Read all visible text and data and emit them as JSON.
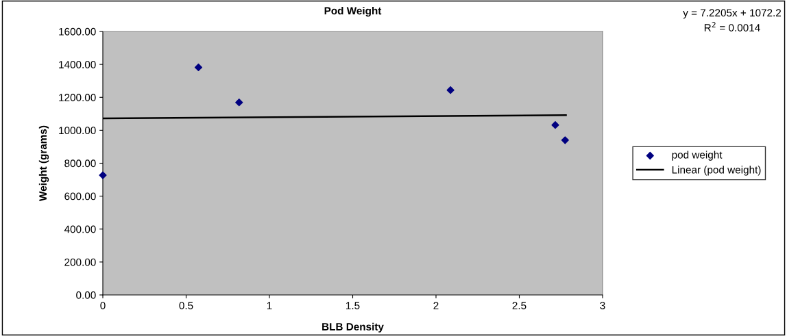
{
  "chart_data": {
    "type": "scatter",
    "title": "Pod Weight",
    "xlabel": "BLB Density",
    "ylabel": "Weight (grams)",
    "annotations": [
      "y = 7.2205x + 1072.2",
      "R$^{2}$ = 0.0014"
    ],
    "series": [
      {
        "name": "pod weight",
        "color": "#000080",
        "marker": "diamond",
        "x": [
          0,
          0.574,
          0.818,
          2.087,
          2.716,
          2.775
        ],
        "values": [
          727,
          1382,
          1169,
          1244,
          1032,
          940
        ]
      },
      {
        "name": "Linear (pod weight)",
        "type": "line",
        "color": "#000000",
        "line_style": "solid",
        "x": [
          0,
          2.78
        ],
        "values": [
          1072,
          1092
        ]
      }
    ],
    "xlim": [
      0,
      3
    ],
    "xticks": [
      0,
      0.5,
      1,
      1.5,
      2,
      2.5,
      3
    ],
    "ylim": [
      0,
      1600
    ],
    "yticks": [
      {
        "value": 0,
        "label": "0.00"
      },
      {
        "value": 200,
        "label": "200.00"
      },
      {
        "value": 400,
        "label": "400.00"
      },
      {
        "value": 600,
        "label": "600.00"
      },
      {
        "value": 800,
        "label": "800.00"
      },
      {
        "value": 1000,
        "label": "1000.00"
      },
      {
        "value": 1200,
        "label": "1200.00"
      },
      {
        "value": 1400,
        "label": "1400.00"
      },
      {
        "value": 1600,
        "label": "1600.00"
      }
    ],
    "grid": false,
    "legend": "right"
  }
}
